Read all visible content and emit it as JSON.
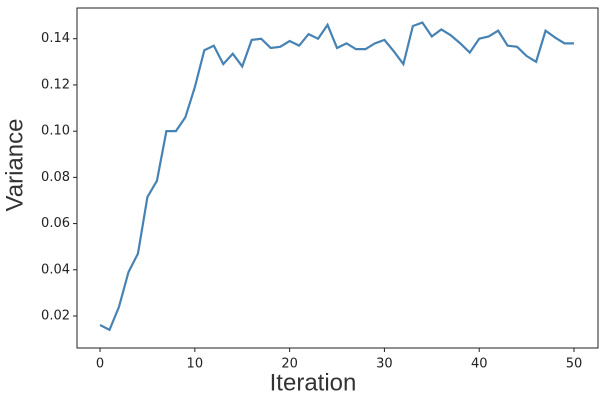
{
  "chart_data": {
    "type": "line",
    "x_label": "Iteration",
    "y_label": "Variance",
    "x": [
      0,
      1,
      2,
      3,
      4,
      5,
      6,
      7,
      8,
      9,
      10,
      11,
      12,
      13,
      14,
      15,
      16,
      17,
      18,
      19,
      20,
      21,
      22,
      23,
      24,
      25,
      26,
      27,
      28,
      29,
      30,
      31,
      32,
      33,
      34,
      35,
      36,
      37,
      38,
      39,
      40,
      41,
      42,
      43,
      44,
      45,
      46,
      47,
      48,
      49,
      50
    ],
    "series": [
      {
        "color": "#4682b4",
        "values": [
          0.0161,
          0.014,
          0.024,
          0.039,
          0.047,
          0.0715,
          0.0785,
          0.1,
          0.1,
          0.106,
          0.119,
          0.135,
          0.137,
          0.129,
          0.1335,
          0.128,
          0.1395,
          0.14,
          0.136,
          0.1365,
          0.139,
          0.137,
          0.142,
          0.14,
          0.146,
          0.136,
          0.138,
          0.1355,
          0.1355,
          0.138,
          0.1395,
          0.1345,
          0.129,
          0.1455,
          0.147,
          0.141,
          0.144,
          0.1415,
          0.138,
          0.134,
          0.14,
          0.141,
          0.1435,
          0.137,
          0.1365,
          0.1325,
          0.13,
          0.1435,
          0.1405,
          0.138,
          0.138
        ]
      }
    ],
    "xlim": [
      -2.43,
      52.53
    ],
    "xticks": [
      0,
      10,
      20,
      30,
      40,
      50
    ],
    "ylim": [
      0.00615,
      0.1533
    ],
    "yticks": [
      0.02,
      0.04,
      0.06,
      0.08,
      {
        "value": 0.1,
        "label": "0.10"
      },
      0.12,
      0.14
    ],
    "grid": false
  }
}
